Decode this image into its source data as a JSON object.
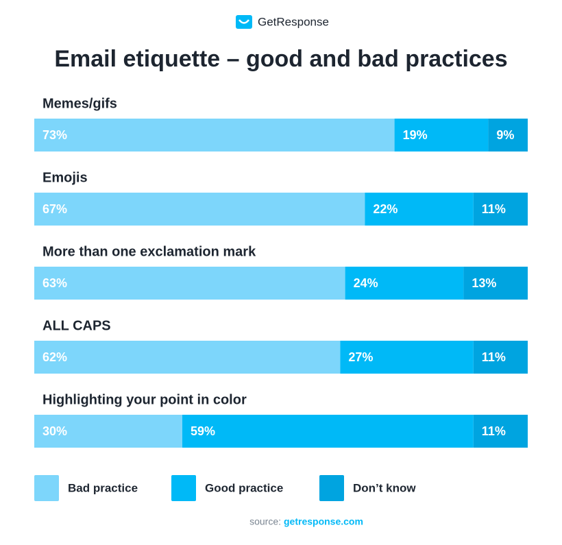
{
  "brand": "GetResponse",
  "chart_data": {
    "type": "stacked-bar-horizontal",
    "title": "Email etiquette – good and bad practices",
    "categories": [
      "Memes/gifs",
      "Emojis",
      "More than one exclamation mark",
      "ALL CAPS",
      "Highlighting your point in color"
    ],
    "series": [
      {
        "name": "Bad practice",
        "color": "#7dd6fb",
        "values": [
          73,
          67,
          63,
          62,
          30
        ],
        "value_labels": [
          "73%",
          "67%",
          "63%",
          "62%",
          "30%"
        ]
      },
      {
        "name": "Good practice",
        "color": "#00b9f7",
        "values": [
          19,
          22,
          24,
          27,
          59
        ],
        "value_labels": [
          "19%",
          "22%",
          "24%",
          "27%",
          "59%"
        ]
      },
      {
        "name": "Don’t know",
        "color": "#00a4e0",
        "values": [
          9,
          11,
          13,
          11,
          11
        ],
        "value_labels": [
          "9%",
          "11%",
          "13%",
          "11%",
          "11%"
        ]
      }
    ],
    "xlim": [
      0,
      100
    ],
    "legend": "bottom"
  },
  "source": {
    "prefix": "source:",
    "link": "getresponse.com"
  }
}
